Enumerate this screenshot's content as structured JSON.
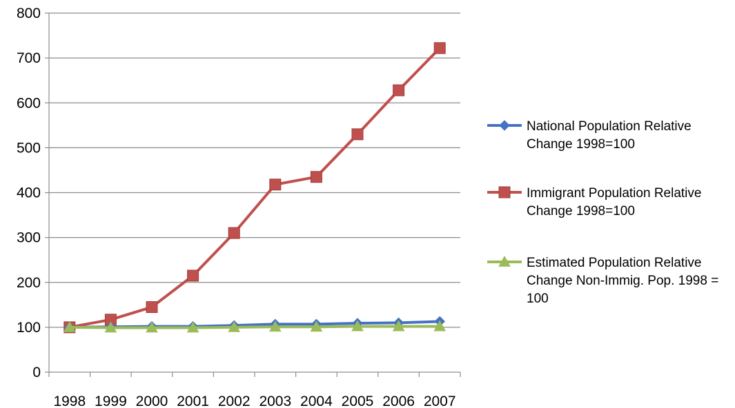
{
  "chart_data": {
    "type": "line",
    "title": "",
    "xlabel": "",
    "ylabel": "",
    "categories": [
      "1998",
      "1999",
      "2000",
      "2001",
      "2002",
      "2003",
      "2004",
      "2005",
      "2006",
      "2007"
    ],
    "ylim": [
      0,
      800
    ],
    "yticks": [
      0,
      100,
      200,
      300,
      400,
      500,
      600,
      700,
      800
    ],
    "grid": "horizontal",
    "legend_position": "right",
    "series": [
      {
        "name": "National Population Relative Change 1998=100",
        "legend_lines": [
          "National Population Relative",
          "Change 1998=100"
        ],
        "color": "#4472C4",
        "marker": "diamond",
        "values": [
          100,
          101,
          102,
          102,
          104,
          107,
          107,
          109,
          110,
          113
        ]
      },
      {
        "name": "Immigrant Population Relative Change 1998=100",
        "legend_lines": [
          "Immigrant Population Relative",
          "Change 1998=100"
        ],
        "color": "#C0504D",
        "marker": "square",
        "values": [
          100,
          117,
          145,
          215,
          310,
          418,
          435,
          530,
          628,
          722
        ]
      },
      {
        "name": "Estimated Population Relative Change Non-Immig. Pop. 1998 = 100",
        "legend_lines": [
          "Estimated  Population Relative",
          "Change Non-Immig. Pop. 1998 =",
          "100"
        ],
        "color": "#9BBB59",
        "marker": "triangle",
        "values": [
          100,
          99,
          99,
          99,
          100,
          101,
          101,
          102,
          102,
          102
        ]
      }
    ]
  }
}
